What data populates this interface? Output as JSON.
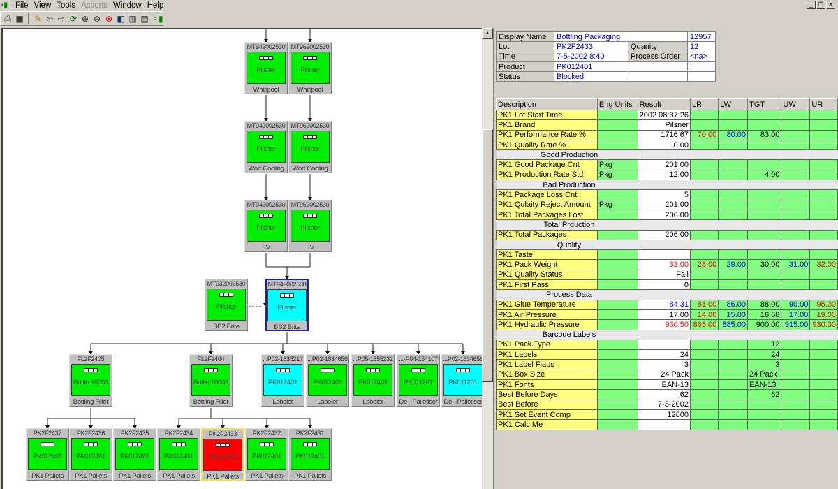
{
  "menu": {
    "items": [
      "File",
      "View",
      "Tools",
      "Actions",
      "Window",
      "Help"
    ],
    "disabled": [
      "Actions"
    ]
  },
  "toolbar": {
    "icons": [
      "print-icon",
      "properties-icon",
      "edit-pencil-icon",
      "back-arrow-icon",
      "forward-arrow-icon",
      "refresh-tree-icon",
      "zoom-in-icon",
      "zoom-out-icon",
      "zoom-reset-icon",
      "layout-icon",
      "columns-icon",
      "table-icon",
      "genealogy-icon"
    ]
  },
  "colors": {
    "green": "#00ee00",
    "cyan": "#00ffff",
    "red": "#ff0000",
    "desc_bg": "#ffff80",
    "limit_bg": "#80ff80",
    "lr": "#ff0000",
    "lw": "#0000ff",
    "tgt": "#000000",
    "uw": "#0000ff",
    "ur": "#ff0000"
  },
  "nodes": [
    {
      "id": "MT942002530",
      "product": "Pilsner",
      "label": "Whirlpool",
      "color": "#00ee00"
    },
    {
      "id": "MT962002530",
      "product": "Pilsner",
      "label": "Whirlpool",
      "color": "#00ee00"
    },
    {
      "id": "MT942002530",
      "product": "Pilsner",
      "label": "Wort Cooling",
      "color": "#00ee00"
    },
    {
      "id": "MT962002530",
      "product": "Pilsner",
      "label": "Wort Cooling",
      "color": "#00ee00"
    },
    {
      "id": "MT942002530",
      "product": "Pilsner",
      "label": "FV",
      "color": "#00ee00"
    },
    {
      "id": "MT962002530",
      "product": "Pilsner",
      "label": "FV",
      "color": "#00ee00"
    },
    {
      "id": "MT932002530",
      "product": "Pilsner",
      "label": "BB2 Brite",
      "color": "#00ee00"
    },
    {
      "id": "MT942002530",
      "product": "Pilsner",
      "label": "BB2 Brite",
      "color": "#00ffff",
      "selected": "blue"
    },
    {
      "id": "FL2F2405",
      "product": "Bottle 10003",
      "label": "Bottling Filler",
      "color": "#00ee00"
    },
    {
      "id": "FL2F2404",
      "product": "Bottle 10003",
      "label": "Bottling Filler",
      "color": "#00ee00"
    },
    {
      "id": "...P02-1835217",
      "product": "PK012401",
      "label": "Labeler",
      "color": "#00ffff"
    },
    {
      "id": "...P02-1834656",
      "product": "PK012401",
      "label": "Labeler",
      "color": "#00ee00"
    },
    {
      "id": "...P05-1555232",
      "product": "PK012401",
      "label": "Labeler",
      "color": "#00ee00"
    },
    {
      "id": "...-P04-154107",
      "product": "PK011201",
      "label": "De - Palletiser",
      "color": "#00ee00"
    },
    {
      "id": "...P02-1834656",
      "product": "PK011201",
      "label": "De - Palletiser",
      "color": "#00ffff"
    },
    {
      "id": "PK2F2437",
      "product": "PK012401",
      "label": "PK1 Pallets",
      "color": "#00ee00"
    },
    {
      "id": "PK2F2436",
      "product": "PK012401",
      "label": "PK1 Pallets",
      "color": "#00ee00"
    },
    {
      "id": "PK2F2435",
      "product": "PK012401",
      "label": "PK1 Pallets",
      "color": "#00ee00"
    },
    {
      "id": "PK2F2434",
      "product": "PK012401",
      "label": "PK1 Pallets",
      "color": "#00ee00"
    },
    {
      "id": "PK2F2433",
      "product": "PK012401",
      "label": "PK1 Pallets",
      "color": "#ff0000",
      "selected": "yellow"
    },
    {
      "id": "PK2F2432",
      "product": "PK012401",
      "label": "PK1 Pallets",
      "color": "#00ee00"
    },
    {
      "id": "PK2F2431",
      "product": "PK012401",
      "label": "PK1 Pallets",
      "color": "#00ee00"
    }
  ],
  "header": {
    "rows": [
      [
        "Display Name",
        "Bottling Packaging",
        "",
        "12957"
      ],
      [
        "Lot",
        "PK2F2433",
        "Quanity",
        "12"
      ],
      [
        "Time",
        "7-5-2002 8:40",
        "Process Order",
        "<na>"
      ],
      [
        "Product",
        "PK012401",
        "",
        ""
      ],
      [
        "Status",
        "Blocked",
        "",
        ""
      ]
    ]
  },
  "grid": {
    "columns": [
      "Description",
      "Eng Units",
      "Result",
      "LR",
      "LW",
      "TGT",
      "UW",
      "UR"
    ],
    "rows": [
      {
        "desc": "PK1 Lot Start Time",
        "units": "",
        "result": "2002 08:37:26"
      },
      {
        "desc": "PK1 Brand",
        "units": "",
        "result": "Pilsner"
      },
      {
        "desc": "PK1 Performance Rate %",
        "units": "",
        "result": "1716.67",
        "lr": "70.00",
        "lw": "80.00",
        "tgt": "83.00"
      },
      {
        "desc": "PK1 Quality Rate %",
        "units": "",
        "result": "0.00"
      },
      {
        "section": "Good Production"
      },
      {
        "desc": "PK1 Good Package Cnt",
        "units": "Pkg",
        "result": "201.00"
      },
      {
        "desc": "PK1 Production Rate Std",
        "units": "Pkg",
        "result": "12.00",
        "tgt": "4.00"
      },
      {
        "section": "Bad Production"
      },
      {
        "desc": "PK1 Package Loss Cnt",
        "units": "",
        "result": "5"
      },
      {
        "desc": "PK1 Qulaity Reject Amount",
        "units": "Pkg",
        "result": "201.00"
      },
      {
        "desc": "PK1 Total Packages Lost",
        "units": "",
        "result": "206.00"
      },
      {
        "section": "Total Prduction"
      },
      {
        "desc": "PK1 Total Packages",
        "units": "",
        "result": "206.00"
      },
      {
        "section": "Quality"
      },
      {
        "desc": "PK1 Taste",
        "units": "",
        "result": ""
      },
      {
        "desc": "PK1 Pack Weight",
        "units": "",
        "result": "33.00",
        "result_color": "#ff0000",
        "lr": "28.00",
        "lw": "29.00",
        "tgt": "30.00",
        "uw": "31.00",
        "ur": "32.00"
      },
      {
        "desc": "PK1 Quality Status",
        "units": "",
        "result": "Fail"
      },
      {
        "desc": "PK1 First Pass",
        "units": "",
        "result": "0"
      },
      {
        "section": "Process Data"
      },
      {
        "desc": "PK1 Glue Temperature",
        "units": "",
        "result": "84.31",
        "result_color": "#0000ff",
        "lr": "81.00",
        "lw": "86.00",
        "tgt": "88.00",
        "uw": "90.00",
        "ur": "95.00"
      },
      {
        "desc": "PK1 Air Pressure",
        "units": "",
        "result": "17.00",
        "lr": "14.00",
        "lw": "15.00",
        "tgt": "16.68",
        "uw": "17.00",
        "ur": "19.00"
      },
      {
        "desc": "PK1 Hydraulic Pressure",
        "units": "",
        "result": "930.50",
        "result_color": "#ff0000",
        "lr": "865.00",
        "lw": "885.00",
        "tgt": "900.00",
        "uw": "915.00",
        "ur": "930.00"
      },
      {
        "section": "Barcode Labels"
      },
      {
        "desc": "PK1 Pack Type",
        "units": "",
        "result": "",
        "tgt": "12"
      },
      {
        "desc": "PK1 Labels",
        "units": "",
        "result": "24",
        "tgt": "24"
      },
      {
        "desc": "PK1 Label Flaps",
        "units": "",
        "result": "3",
        "tgt": "3"
      },
      {
        "desc": "PK1 Box Size",
        "units": "",
        "result": "24 Pack",
        "tgt": "24 Pack"
      },
      {
        "desc": "PK1 Fonts",
        "units": "",
        "result": "EAN-13",
        "tgt": "EAN-13"
      },
      {
        "desc": "Best Before Days",
        "units": "",
        "result": "62",
        "tgt": "62"
      },
      {
        "desc": "Best Before",
        "units": "",
        "result": "7-3-2002"
      },
      {
        "desc": "PK1 Set Event Comp",
        "units": "",
        "result": "12600"
      },
      {
        "desc": "PK1 Calc Me",
        "units": "",
        "result": ""
      }
    ]
  }
}
